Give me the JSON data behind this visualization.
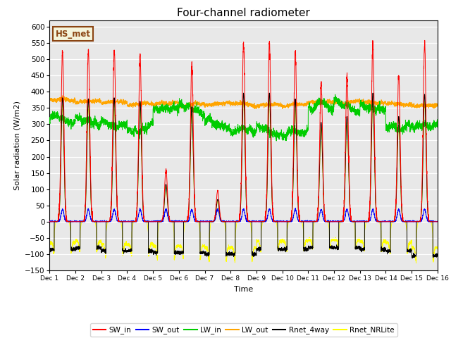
{
  "title": "Four-channel radiometer",
  "xlabel": "Time",
  "ylabel": "Solar radiation (W/m2)",
  "ylim": [
    -150,
    620
  ],
  "yticks": [
    -150,
    -100,
    -50,
    0,
    50,
    100,
    150,
    200,
    250,
    300,
    350,
    400,
    450,
    500,
    550,
    600
  ],
  "xtick_labels": [
    "Dec 1",
    "Dec 2",
    "Dec 3",
    "Dec 4",
    "Dec 5",
    "Dec 6",
    "Dec 7",
    "Dec 8",
    "Dec 9",
    "Dec 10",
    "Dec 11",
    "Dec 12",
    "Dec 13",
    "Dec 14",
    "Dec 15",
    "Dec 16"
  ],
  "annotation_text": "HS_met",
  "annotation_color": "#8B4513",
  "annotation_bg": "#F5F5DC",
  "colors": {
    "SW_in": "#FF0000",
    "SW_out": "#0000FF",
    "LW_in": "#00CC00",
    "LW_out": "#FFA500",
    "Rnet_4way": "#000000",
    "Rnet_NRLite": "#FFFF00"
  },
  "legend_labels": [
    "SW_in",
    "SW_out",
    "LW_in",
    "LW_out",
    "Rnet_4way",
    "Rnet_NRLite"
  ],
  "bg_color": "#E8E8E8",
  "n_days": 15,
  "pts_per_day": 288,
  "sw_peaks": [
    530,
    525,
    530,
    515,
    160,
    490,
    95,
    550,
    550,
    525,
    425,
    450,
    550,
    450,
    545
  ],
  "lw_in_base": [
    315,
    310,
    300,
    285,
    348,
    348,
    300,
    280,
    278,
    275,
    355,
    355,
    350,
    290,
    295
  ],
  "lw_out_base": [
    375,
    370,
    368,
    362,
    365,
    360,
    363,
    362,
    360,
    360,
    368,
    368,
    367,
    362,
    357
  ],
  "rnet_night_4way": [
    -85,
    -80,
    -90,
    -90,
    -95,
    -95,
    -100,
    -100,
    -85,
    -85,
    -80,
    -80,
    -85,
    -90,
    -105
  ],
  "rnet_night_nr": [
    -65,
    -60,
    -70,
    -70,
    -75,
    -75,
    -80,
    -80,
    -60,
    -60,
    -55,
    -55,
    -60,
    -65,
    -80
  ]
}
